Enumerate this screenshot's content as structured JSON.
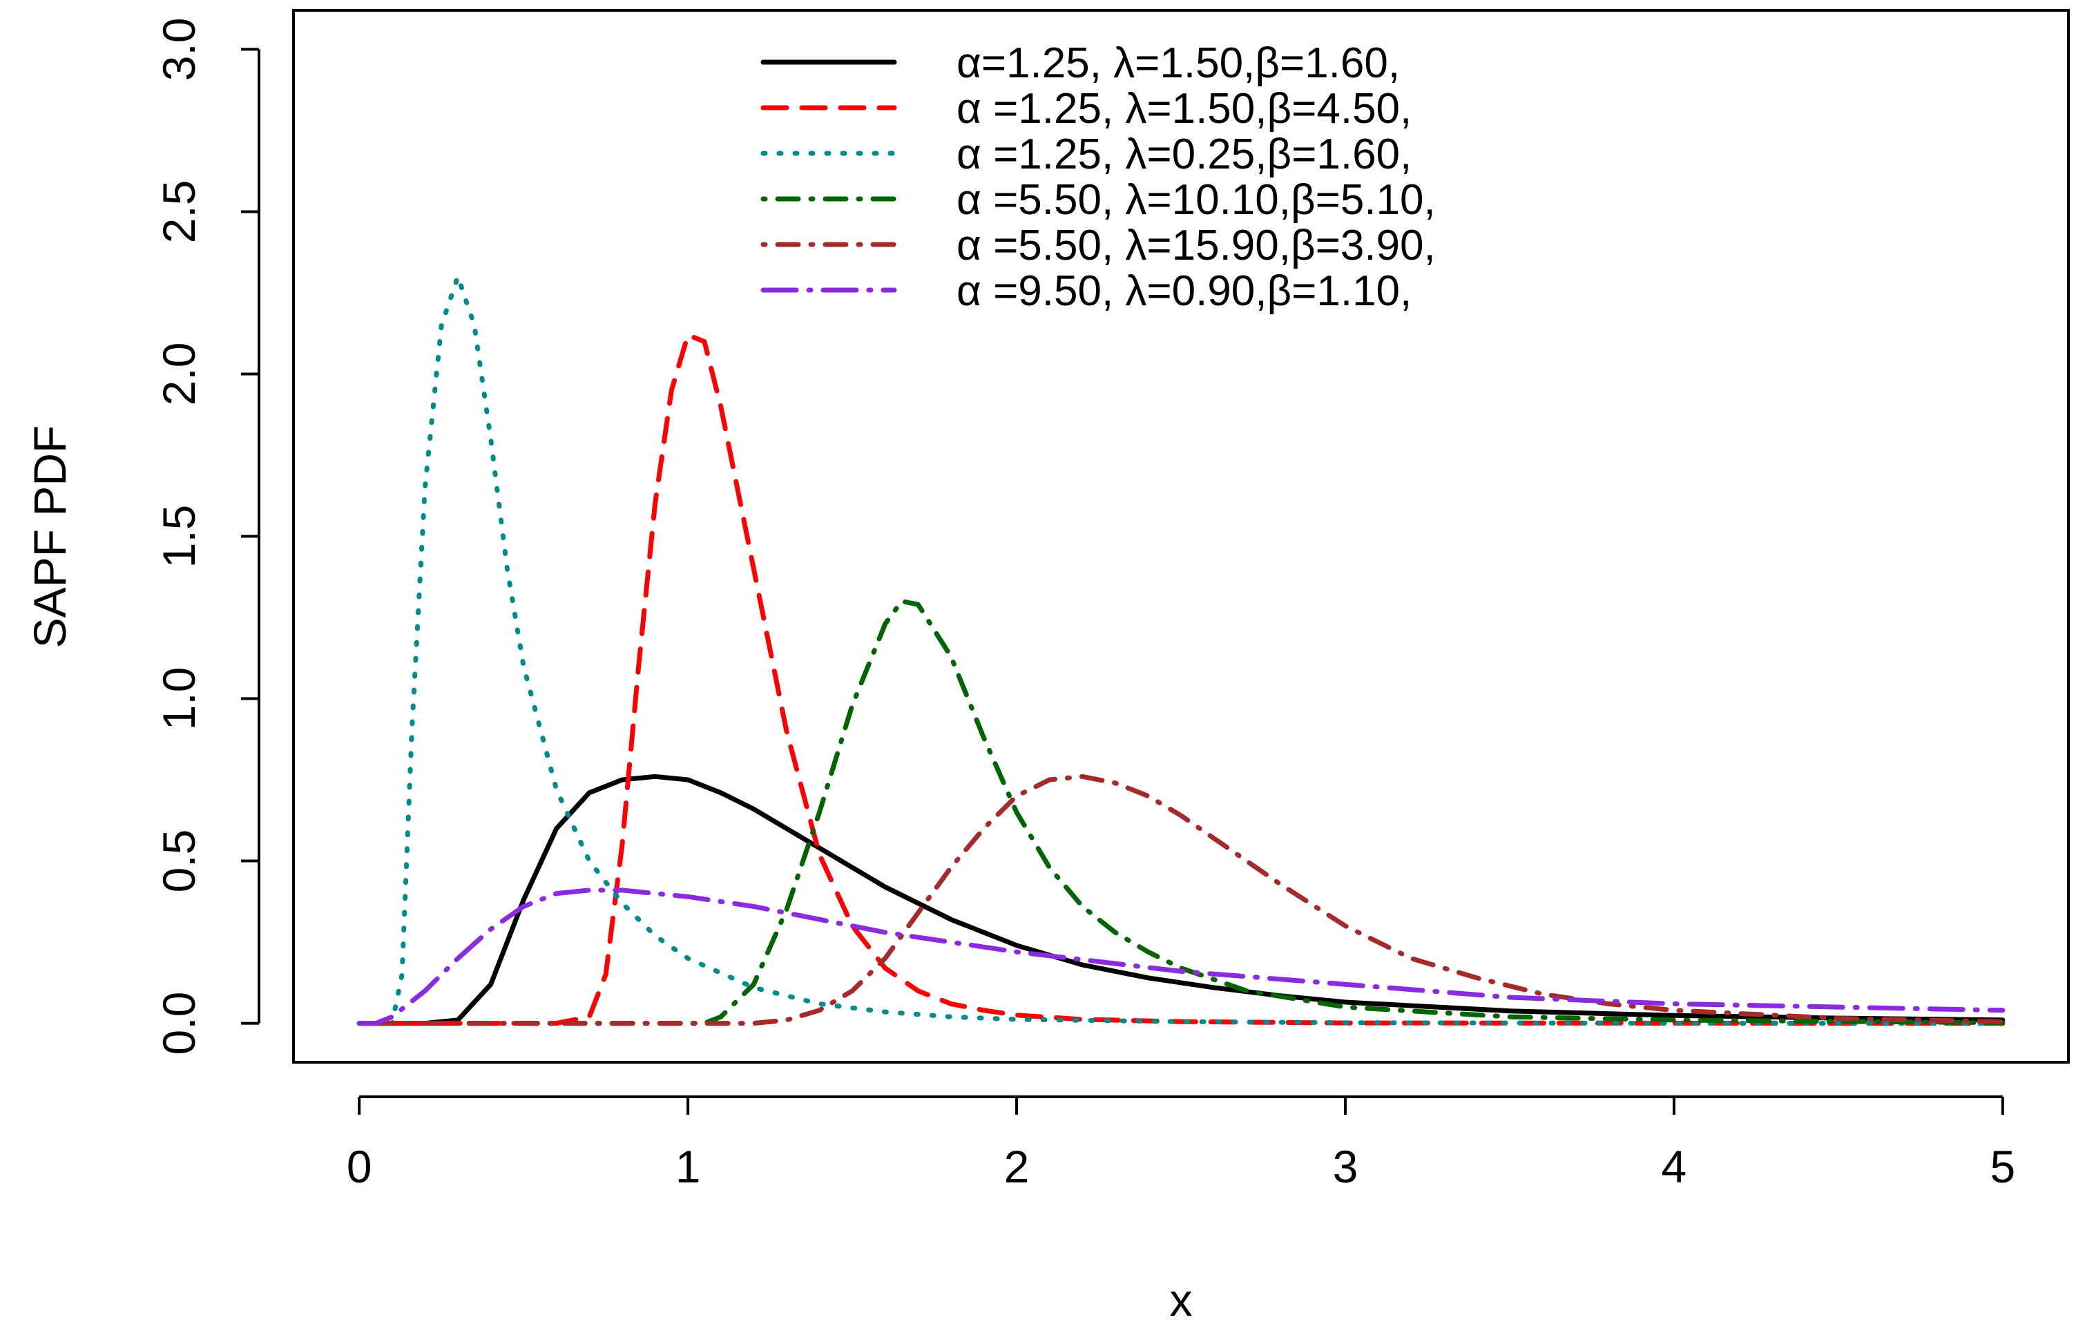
{
  "chart_data": {
    "type": "line",
    "title": "",
    "xlabel": "x",
    "ylabel": "SAPF PDF",
    "xlim": [
      -0.2,
      5.2
    ],
    "ylim": [
      -0.12,
      3.12
    ],
    "xticks": [
      0,
      1,
      2,
      3,
      4,
      5
    ],
    "xtick_labels": [
      "0",
      "1",
      "2",
      "3",
      "4",
      "5"
    ],
    "yticks": [
      0.0,
      0.5,
      1.0,
      1.5,
      2.0,
      2.5,
      3.0
    ],
    "ytick_labels": [
      "0.0",
      "0.5",
      "1.0",
      "1.5",
      "2.0",
      "2.5",
      "3.0"
    ],
    "grid": false,
    "legend_position": "top-center",
    "series": [
      {
        "name": "α=1.25, λ=1.50,β=1.60,",
        "color": "#000000",
        "dash": "solid",
        "points": [
          [
            0,
            0
          ],
          [
            0.2,
            0
          ],
          [
            0.3,
            0.01
          ],
          [
            0.4,
            0.12
          ],
          [
            0.5,
            0.38
          ],
          [
            0.6,
            0.6
          ],
          [
            0.7,
            0.71
          ],
          [
            0.8,
            0.75
          ],
          [
            0.9,
            0.76
          ],
          [
            1.0,
            0.75
          ],
          [
            1.1,
            0.71
          ],
          [
            1.2,
            0.66
          ],
          [
            1.3,
            0.6
          ],
          [
            1.4,
            0.54
          ],
          [
            1.5,
            0.48
          ],
          [
            1.6,
            0.42
          ],
          [
            1.7,
            0.37
          ],
          [
            1.8,
            0.32
          ],
          [
            1.9,
            0.28
          ],
          [
            2.0,
            0.24
          ],
          [
            2.2,
            0.18
          ],
          [
            2.4,
            0.14
          ],
          [
            2.6,
            0.11
          ],
          [
            2.8,
            0.085
          ],
          [
            3.0,
            0.065
          ],
          [
            3.5,
            0.038
          ],
          [
            4.0,
            0.024
          ],
          [
            4.5,
            0.016
          ],
          [
            5.0,
            0.01
          ]
        ]
      },
      {
        "name": "α =1.25, λ=1.50,β=4.50,",
        "color": "#ff0000",
        "dash": "dashed",
        "points": [
          [
            0,
            0
          ],
          [
            0.6,
            0
          ],
          [
            0.7,
            0.02
          ],
          [
            0.75,
            0.15
          ],
          [
            0.8,
            0.55
          ],
          [
            0.85,
            1.1
          ],
          [
            0.9,
            1.6
          ],
          [
            0.95,
            1.95
          ],
          [
            1.0,
            2.12
          ],
          [
            1.05,
            2.1
          ],
          [
            1.1,
            1.9
          ],
          [
            1.2,
            1.4
          ],
          [
            1.3,
            0.9
          ],
          [
            1.4,
            0.52
          ],
          [
            1.5,
            0.3
          ],
          [
            1.6,
            0.17
          ],
          [
            1.7,
            0.1
          ],
          [
            1.8,
            0.06
          ],
          [
            1.9,
            0.04
          ],
          [
            2.0,
            0.025
          ],
          [
            2.2,
            0.012
          ],
          [
            2.5,
            0.005
          ],
          [
            3.0,
            0.001
          ],
          [
            5.0,
            0
          ]
        ]
      },
      {
        "name": "α =1.25, λ=0.25,β=1.60,",
        "color": "#008b8b",
        "dash": "dotted",
        "points": [
          [
            0,
            0
          ],
          [
            0.1,
            0
          ],
          [
            0.13,
            0.15
          ],
          [
            0.16,
            0.9
          ],
          [
            0.2,
            1.65
          ],
          [
            0.25,
            2.15
          ],
          [
            0.3,
            2.3
          ],
          [
            0.35,
            2.15
          ],
          [
            0.4,
            1.8
          ],
          [
            0.45,
            1.4
          ],
          [
            0.5,
            1.1
          ],
          [
            0.6,
            0.72
          ],
          [
            0.7,
            0.5
          ],
          [
            0.8,
            0.37
          ],
          [
            0.9,
            0.27
          ],
          [
            1.0,
            0.2
          ],
          [
            1.2,
            0.11
          ],
          [
            1.4,
            0.06
          ],
          [
            1.6,
            0.035
          ],
          [
            1.8,
            0.02
          ],
          [
            2.0,
            0.012
          ],
          [
            2.5,
            0.005
          ],
          [
            3.0,
            0.002
          ],
          [
            4.0,
            0
          ],
          [
            5.0,
            0
          ]
        ]
      },
      {
        "name": "α =5.50, λ=10.10,β=5.10,",
        "color": "#006400",
        "dash": "dotdash",
        "points": [
          [
            0,
            0
          ],
          [
            1.05,
            0
          ],
          [
            1.1,
            0.02
          ],
          [
            1.2,
            0.12
          ],
          [
            1.3,
            0.35
          ],
          [
            1.4,
            0.65
          ],
          [
            1.5,
            0.98
          ],
          [
            1.6,
            1.23
          ],
          [
            1.65,
            1.3
          ],
          [
            1.7,
            1.29
          ],
          [
            1.8,
            1.13
          ],
          [
            1.9,
            0.88
          ],
          [
            2.0,
            0.65
          ],
          [
            2.1,
            0.48
          ],
          [
            2.2,
            0.36
          ],
          [
            2.3,
            0.28
          ],
          [
            2.4,
            0.22
          ],
          [
            2.5,
            0.17
          ],
          [
            2.7,
            0.1
          ],
          [
            3.0,
            0.05
          ],
          [
            3.5,
            0.02
          ],
          [
            4.0,
            0.01
          ],
          [
            5.0,
            0.002
          ]
        ]
      },
      {
        "name": "α =5.50, λ=15.90,β=3.90,",
        "color": "#a52a2a",
        "dash": "dotdash",
        "points": [
          [
            0,
            0
          ],
          [
            1.2,
            0
          ],
          [
            1.3,
            0.01
          ],
          [
            1.4,
            0.04
          ],
          [
            1.5,
            0.1
          ],
          [
            1.6,
            0.2
          ],
          [
            1.7,
            0.34
          ],
          [
            1.8,
            0.48
          ],
          [
            1.9,
            0.6
          ],
          [
            2.0,
            0.7
          ],
          [
            2.1,
            0.75
          ],
          [
            2.2,
            0.76
          ],
          [
            2.3,
            0.74
          ],
          [
            2.4,
            0.7
          ],
          [
            2.5,
            0.64
          ],
          [
            2.6,
            0.57
          ],
          [
            2.8,
            0.43
          ],
          [
            3.0,
            0.3
          ],
          [
            3.2,
            0.2
          ],
          [
            3.4,
            0.14
          ],
          [
            3.6,
            0.09
          ],
          [
            3.8,
            0.06
          ],
          [
            4.0,
            0.04
          ],
          [
            4.5,
            0.015
          ],
          [
            5.0,
            0.005
          ]
        ]
      },
      {
        "name": "α =9.50, λ=0.90,β=1.10,",
        "color": "#8a2be2",
        "dash": "longdash-dot",
        "points": [
          [
            0,
            0
          ],
          [
            0.05,
            0
          ],
          [
            0.1,
            0.02
          ],
          [
            0.2,
            0.1
          ],
          [
            0.3,
            0.2
          ],
          [
            0.4,
            0.29
          ],
          [
            0.5,
            0.36
          ],
          [
            0.6,
            0.4
          ],
          [
            0.7,
            0.41
          ],
          [
            0.8,
            0.41
          ],
          [
            1.0,
            0.39
          ],
          [
            1.2,
            0.36
          ],
          [
            1.4,
            0.32
          ],
          [
            1.6,
            0.28
          ],
          [
            1.8,
            0.25
          ],
          [
            2.0,
            0.22
          ],
          [
            2.5,
            0.16
          ],
          [
            3.0,
            0.12
          ],
          [
            3.5,
            0.08
          ],
          [
            4.0,
            0.06
          ],
          [
            4.5,
            0.05
          ],
          [
            5.0,
            0.04
          ]
        ]
      }
    ]
  }
}
